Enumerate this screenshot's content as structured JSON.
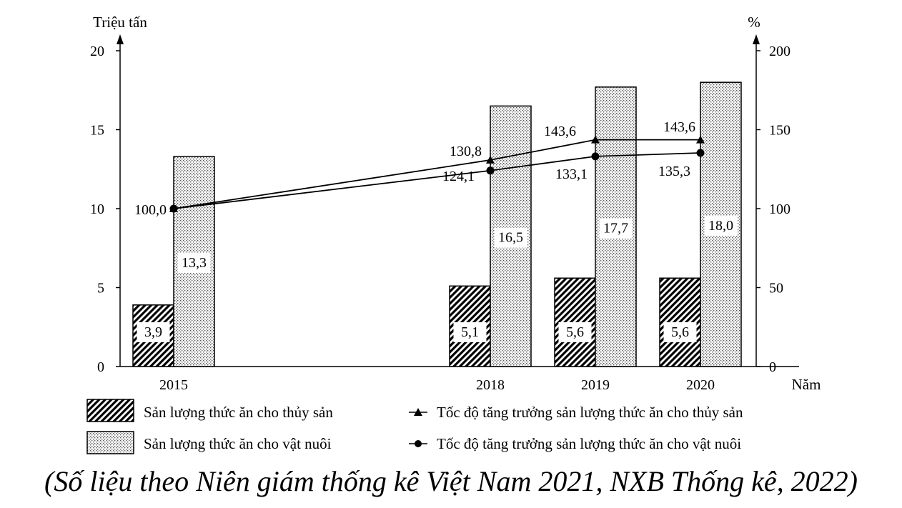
{
  "chart_data": {
    "type": "bar+line",
    "x": [
      "2015",
      "2018",
      "2019",
      "2020"
    ],
    "xlabel": "Năm",
    "y_left": {
      "label": "Triệu tấn",
      "range": [
        0,
        20
      ],
      "ticks": [
        "0",
        "5",
        "10",
        "15",
        "20"
      ]
    },
    "y_right": {
      "label": "%",
      "range": [
        0,
        200
      ],
      "ticks": [
        "0",
        "50",
        "100",
        "150",
        "200"
      ]
    },
    "bar_series": [
      {
        "name": "Sản lượng thức ăn cho thủy sản",
        "pattern": "hatch",
        "values": [
          3.9,
          5.1,
          5.6,
          5.6
        ],
        "labels": [
          "3,9",
          "5,1",
          "5,6",
          "5,6"
        ]
      },
      {
        "name": "Sản lượng thức ăn cho vật nuôi",
        "pattern": "dots",
        "values": [
          13.3,
          16.5,
          17.7,
          18.0
        ],
        "labels": [
          "13,3",
          "16,5",
          "17,7",
          "18,0"
        ]
      }
    ],
    "line_series": [
      {
        "name": "Tốc độ tăng trưởng sản lượng thức ăn cho thủy sản",
        "marker": "triangle",
        "values": [
          100.0,
          130.8,
          143.6,
          143.6
        ],
        "labels": [
          "",
          "130,8",
          "143,6",
          "143,6"
        ]
      },
      {
        "name": "Tốc độ tăng trưởng sản lượng thức ăn cho vật nuôi",
        "marker": "circle",
        "values": [
          100.0,
          124.1,
          133.1,
          135.3
        ],
        "labels": [
          "100,0",
          "124,1",
          "133,1",
          "135,3"
        ]
      }
    ],
    "grid": false,
    "legend_position": "bottom"
  },
  "source_note": "(Số liệu theo Niên giám thống kê Việt Nam 2021, NXB Thống kê, 2022)"
}
